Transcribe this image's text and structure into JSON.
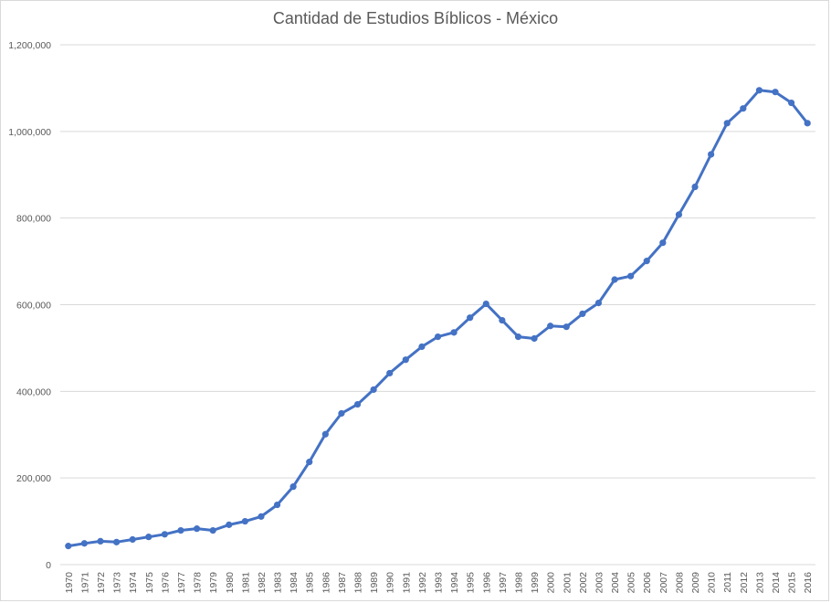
{
  "chart_data": {
    "type": "line",
    "title": "Cantidad de Estudios Bíblicos - México",
    "xlabel": "",
    "ylabel": "",
    "ylim": [
      0,
      1200000
    ],
    "y_ticks": [
      0,
      200000,
      400000,
      600000,
      800000,
      1000000,
      1200000
    ],
    "y_tick_labels": [
      "0",
      "200,000",
      "400,000",
      "600,000",
      "800,000",
      "1,000,000",
      "1,200,000"
    ],
    "grid": true,
    "legend": "none",
    "series_color": "#4472c4",
    "grid_color": "#d9d9d9",
    "categories": [
      "1970",
      "1971",
      "1972",
      "1973",
      "1974",
      "1975",
      "1976",
      "1977",
      "1978",
      "1979",
      "1980",
      "1981",
      "1982",
      "1983",
      "1984",
      "1985",
      "1986",
      "1987",
      "1988",
      "1989",
      "1990",
      "1991",
      "1992",
      "1993",
      "1994",
      "1995",
      "1996",
      "1997",
      "1998",
      "1999",
      "2000",
      "2001",
      "2002",
      "2003",
      "2004",
      "2005",
      "2006",
      "2007",
      "2008",
      "2009",
      "2010",
      "2011",
      "2012",
      "2013",
      "2014",
      "2015",
      "2016"
    ],
    "values": [
      43000,
      49000,
      54000,
      52000,
      58000,
      64000,
      70000,
      79000,
      83000,
      79000,
      92000,
      100000,
      111000,
      138000,
      180000,
      237000,
      301000,
      349000,
      370000,
      404000,
      442000,
      473000,
      503000,
      526000,
      536000,
      570000,
      602000,
      564000,
      526000,
      522000,
      551000,
      549000,
      579000,
      604000,
      658000,
      666000,
      701000,
      743000,
      808000,
      872000,
      947000,
      1019000,
      1053000,
      1095000,
      1091000,
      1066000,
      1019000
    ]
  }
}
